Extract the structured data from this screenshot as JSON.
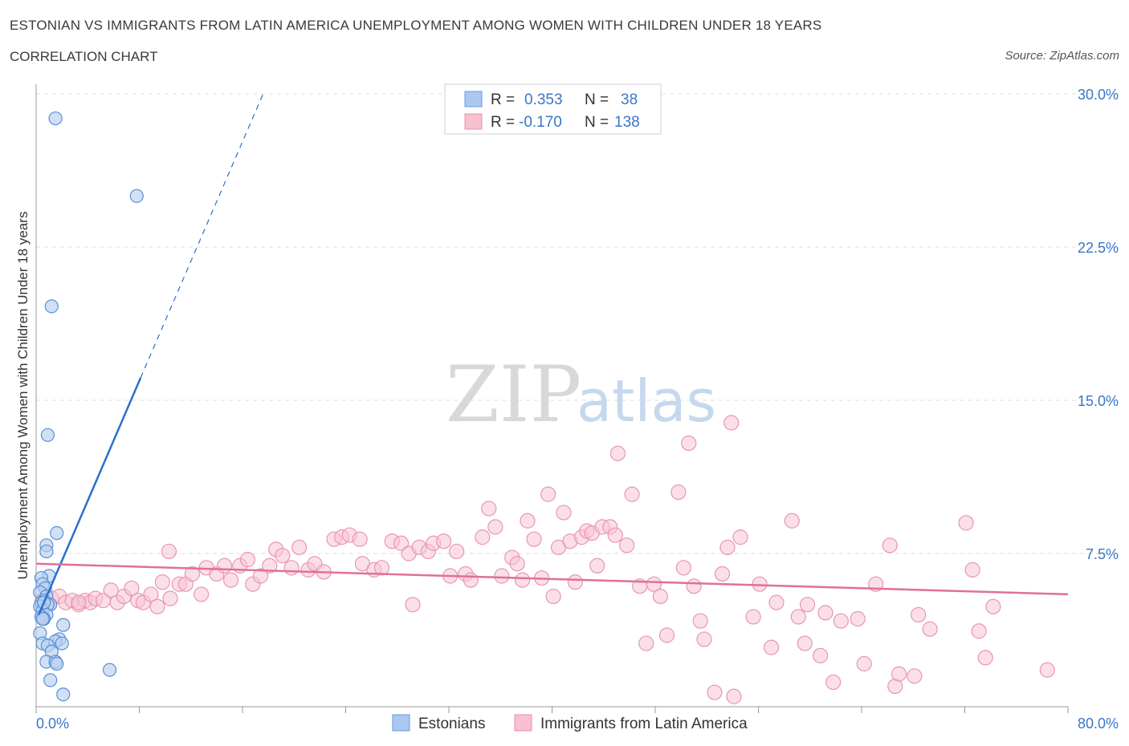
{
  "header": {
    "title": "ESTONIAN VS IMMIGRANTS FROM LATIN AMERICA UNEMPLOYMENT AMONG WOMEN WITH CHILDREN UNDER 18 YEARS",
    "subtitle": "CORRELATION CHART",
    "source": "Source: ZipAtlas.com"
  },
  "watermark": {
    "zip": "ZIP",
    "atlas": "atlas"
  },
  "legend": {
    "r_label": "R =",
    "n_label": "N =",
    "rows": [
      {
        "r": "0.353",
        "n": "38",
        "color": "#aac8f0",
        "stroke": "#6a9ad8"
      },
      {
        "r": "-0.170",
        "n": "138",
        "color": "#f8c0d0",
        "stroke": "#e890a8"
      }
    ]
  },
  "colors": {
    "estonians_fill": "#b8d0f0",
    "estonians_stroke": "#5a8ed6",
    "estonians_line": "#2a6fcf",
    "latam_fill": "#f8c4d4",
    "latam_stroke": "#e896b0",
    "latam_line": "#e0709a",
    "tick_label": "#3a76c8",
    "grid": "#dddddd"
  },
  "chart_data": {
    "type": "scatter",
    "title": "ESTONIAN VS IMMIGRANTS FROM LATIN AMERICA UNEMPLOYMENT AMONG WOMEN WITH CHILDREN UNDER 18 YEARS",
    "xlabel": "",
    "ylabel": "Unemployment Among Women with Children Under 18 years",
    "xlim": [
      0,
      80
    ],
    "ylim": [
      0,
      30
    ],
    "x_tick_labels": [
      "0.0%",
      "80.0%"
    ],
    "y_ticks": [
      7.5,
      15.0,
      22.5,
      30.0
    ],
    "y_tick_labels": [
      "7.5%",
      "15.0%",
      "22.5%",
      "30.0%"
    ],
    "grid": true,
    "legend_position": "bottom",
    "series": [
      {
        "name": "Estonians",
        "points": [
          [
            1.5,
            28.8
          ],
          [
            7.8,
            25.0
          ],
          [
            1.2,
            19.6
          ],
          [
            0.9,
            13.3
          ],
          [
            1.6,
            8.5
          ],
          [
            0.8,
            7.9
          ],
          [
            0.8,
            7.6
          ],
          [
            1.0,
            6.4
          ],
          [
            0.4,
            6.3
          ],
          [
            0.5,
            6.0
          ],
          [
            0.7,
            5.8
          ],
          [
            0.3,
            5.6
          ],
          [
            0.8,
            5.4
          ],
          [
            0.6,
            5.2
          ],
          [
            0.4,
            5.1
          ],
          [
            1.1,
            5.0
          ],
          [
            0.9,
            5.0
          ],
          [
            0.3,
            4.9
          ],
          [
            0.5,
            4.7
          ],
          [
            0.8,
            4.5
          ],
          [
            0.4,
            4.4
          ],
          [
            0.6,
            4.3
          ],
          [
            0.5,
            4.3
          ],
          [
            2.1,
            4.0
          ],
          [
            0.3,
            3.6
          ],
          [
            1.8,
            3.3
          ],
          [
            1.5,
            3.2
          ],
          [
            0.5,
            3.1
          ],
          [
            2.0,
            3.1
          ],
          [
            0.9,
            3.0
          ],
          [
            1.2,
            2.7
          ],
          [
            0.8,
            2.2
          ],
          [
            1.5,
            2.2
          ],
          [
            1.6,
            2.1
          ],
          [
            5.7,
            1.8
          ],
          [
            1.1,
            1.3
          ],
          [
            2.1,
            0.6
          ],
          [
            0.6,
            5.1
          ]
        ]
      },
      {
        "name": "Immigrants from Latin America",
        "points": [
          [
            0.5,
            5.2
          ],
          [
            0.8,
            5.0
          ],
          [
            1.2,
            5.3
          ],
          [
            1.8,
            5.4
          ],
          [
            2.3,
            5.1
          ],
          [
            2.8,
            5.2
          ],
          [
            3.3,
            5.0
          ],
          [
            3.8,
            5.2
          ],
          [
            4.2,
            5.1
          ],
          [
            4.6,
            5.3
          ],
          [
            5.2,
            5.2
          ],
          [
            5.8,
            5.7
          ],
          [
            6.3,
            5.1
          ],
          [
            6.8,
            5.4
          ],
          [
            7.4,
            5.8
          ],
          [
            7.9,
            5.2
          ],
          [
            8.3,
            5.1
          ],
          [
            8.9,
            5.5
          ],
          [
            9.4,
            4.9
          ],
          [
            9.8,
            6.1
          ],
          [
            10.4,
            5.3
          ],
          [
            10.3,
            7.6
          ],
          [
            11.1,
            6.0
          ],
          [
            11.6,
            6.0
          ],
          [
            12.1,
            6.5
          ],
          [
            12.8,
            5.5
          ],
          [
            13.2,
            6.8
          ],
          [
            14.0,
            6.5
          ],
          [
            14.6,
            6.9
          ],
          [
            15.1,
            6.2
          ],
          [
            15.8,
            6.9
          ],
          [
            16.4,
            7.2
          ],
          [
            16.8,
            6.0
          ],
          [
            17.4,
            6.4
          ],
          [
            18.1,
            6.9
          ],
          [
            18.6,
            7.7
          ],
          [
            19.1,
            7.4
          ],
          [
            19.8,
            6.8
          ],
          [
            20.4,
            7.8
          ],
          [
            21.1,
            6.7
          ],
          [
            21.6,
            7.0
          ],
          [
            22.3,
            6.6
          ],
          [
            23.1,
            8.2
          ],
          [
            23.7,
            8.3
          ],
          [
            24.3,
            8.4
          ],
          [
            25.1,
            8.2
          ],
          [
            25.3,
            7.0
          ],
          [
            26.2,
            6.7
          ],
          [
            26.8,
            6.8
          ],
          [
            27.6,
            8.1
          ],
          [
            28.3,
            8.0
          ],
          [
            28.9,
            7.5
          ],
          [
            29.2,
            5.0
          ],
          [
            29.7,
            7.8
          ],
          [
            30.4,
            7.6
          ],
          [
            30.8,
            8.0
          ],
          [
            31.6,
            8.1
          ],
          [
            32.1,
            6.4
          ],
          [
            32.6,
            7.6
          ],
          [
            33.3,
            6.5
          ],
          [
            33.7,
            6.2
          ],
          [
            34.6,
            8.3
          ],
          [
            35.1,
            9.7
          ],
          [
            35.6,
            8.8
          ],
          [
            36.1,
            6.4
          ],
          [
            36.9,
            7.3
          ],
          [
            37.3,
            7.0
          ],
          [
            37.7,
            6.2
          ],
          [
            38.1,
            9.1
          ],
          [
            38.6,
            8.2
          ],
          [
            39.2,
            6.3
          ],
          [
            39.7,
            10.4
          ],
          [
            40.1,
            5.4
          ],
          [
            40.5,
            7.8
          ],
          [
            40.9,
            9.5
          ],
          [
            41.4,
            8.1
          ],
          [
            41.8,
            6.1
          ],
          [
            42.3,
            8.3
          ],
          [
            42.7,
            8.6
          ],
          [
            43.1,
            8.5
          ],
          [
            43.5,
            6.9
          ],
          [
            43.9,
            8.8
          ],
          [
            44.5,
            8.8
          ],
          [
            44.9,
            8.4
          ],
          [
            45.1,
            12.4
          ],
          [
            45.8,
            7.9
          ],
          [
            46.2,
            10.4
          ],
          [
            46.8,
            5.9
          ],
          [
            47.3,
            3.1
          ],
          [
            47.9,
            6.0
          ],
          [
            48.4,
            5.4
          ],
          [
            48.9,
            3.5
          ],
          [
            49.8,
            10.5
          ],
          [
            50.2,
            6.8
          ],
          [
            50.6,
            12.9
          ],
          [
            51.0,
            5.9
          ],
          [
            51.5,
            4.2
          ],
          [
            51.8,
            3.3
          ],
          [
            52.6,
            0.7
          ],
          [
            53.2,
            6.5
          ],
          [
            53.6,
            7.8
          ],
          [
            53.9,
            13.9
          ],
          [
            54.1,
            0.5
          ],
          [
            54.6,
            8.3
          ],
          [
            55.6,
            4.4
          ],
          [
            56.1,
            6.0
          ],
          [
            57.0,
            2.9
          ],
          [
            57.4,
            5.1
          ],
          [
            58.6,
            9.1
          ],
          [
            59.1,
            4.4
          ],
          [
            59.6,
            3.1
          ],
          [
            59.8,
            5.0
          ],
          [
            60.8,
            2.5
          ],
          [
            61.2,
            4.6
          ],
          [
            61.8,
            1.2
          ],
          [
            62.4,
            4.2
          ],
          [
            63.7,
            4.3
          ],
          [
            64.2,
            2.1
          ],
          [
            65.1,
            6.0
          ],
          [
            66.2,
            7.9
          ],
          [
            66.6,
            1.0
          ],
          [
            66.9,
            1.6
          ],
          [
            68.1,
            1.5
          ],
          [
            68.4,
            4.5
          ],
          [
            69.3,
            3.8
          ],
          [
            72.1,
            9.0
          ],
          [
            72.6,
            6.7
          ],
          [
            73.1,
            3.7
          ],
          [
            73.6,
            2.4
          ],
          [
            74.2,
            4.9
          ],
          [
            78.4,
            1.8
          ],
          [
            3.3,
            5.1
          ]
        ]
      }
    ],
    "trendlines": [
      {
        "series": "Estonians",
        "solid_from": [
          0.2,
          4.5
        ],
        "solid_to": [
          8.1,
          16.1
        ],
        "dashed_to": [
          17.6,
          30.0
        ]
      },
      {
        "series": "Immigrants from Latin America",
        "from": [
          0.0,
          7.0
        ],
        "to": [
          80.0,
          5.5
        ]
      }
    ]
  },
  "bottom_legend": {
    "estonians": "Estonians",
    "latam": "Immigrants from Latin America"
  }
}
